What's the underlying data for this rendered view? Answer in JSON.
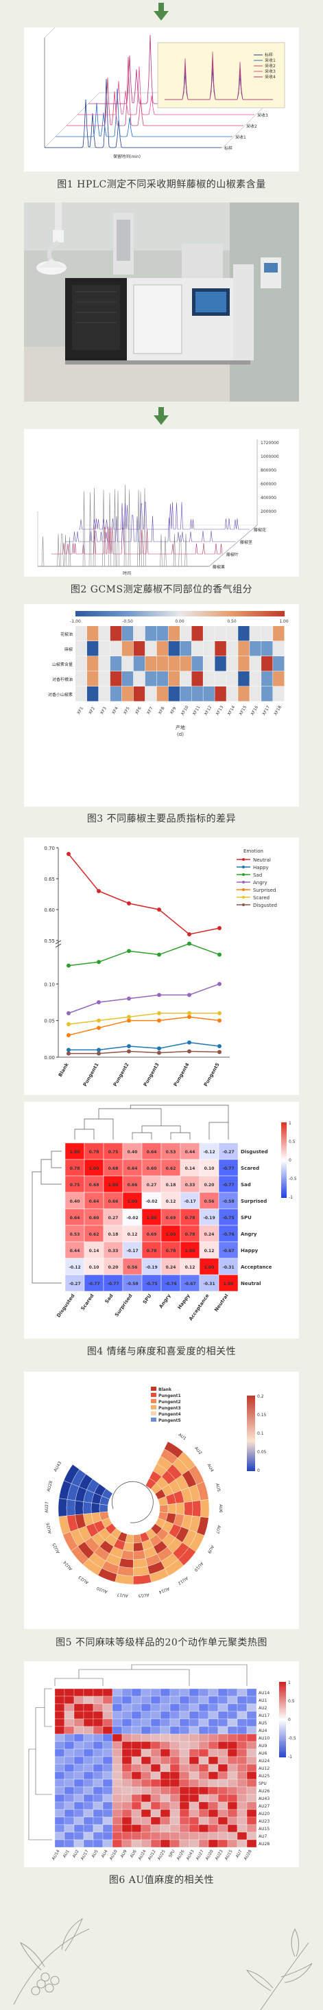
{
  "captions": {
    "fig1": "图1 HPLC测定不同采收期鲜藤椒的山椒素含量",
    "fig2": "图2 GCMS测定藤椒不同部位的香气组分",
    "fig3": "图3 不同藤椒主要品质指标的差异",
    "fig4": "图4 情绪与麻度和喜爱度的相关性",
    "fig5": "图5 不同麻味等级样品的20个动作单元聚类热图",
    "fig6": "图6 AU值麻度的相关性"
  },
  "icons": {
    "arrow": "down-arrow-icon",
    "hood": "fume-hood",
    "instrument": "gcms-instrument"
  },
  "fig1": {
    "xlabel": "保留时间(min)",
    "legend": [
      "标样",
      "采收1",
      "采收2",
      "采收3",
      "采收4"
    ],
    "series_labels": [
      "标样",
      "采收1",
      "采收2",
      "采收3",
      "采收4"
    ]
  },
  "fig2": {
    "xlabel": "时间",
    "ylabels": [
      "1720000",
      "1000000",
      "800000",
      "600000",
      "400000",
      "200000"
    ],
    "series_labels": [
      "藤椒果",
      "藤椒叶",
      "藤椒茎",
      "藤椒花"
    ]
  },
  "fig3": {
    "colorbar_ticks": [
      "-1.00",
      "-0.50",
      "0.00",
      "0.50",
      "1.00"
    ],
    "rows": [
      "花椒油",
      "麻椒",
      "山椒素含量",
      "对香柠檬油",
      "对香小山椒素"
    ],
    "cols": [
      "XF1",
      "XF2",
      "XF3",
      "XF4",
      "XF5",
      "XF6",
      "XF7",
      "XF8",
      "XF9",
      "XF10",
      "XF11",
      "XF12",
      "XF13",
      "XF14",
      "XF15",
      "XF16",
      "XF17",
      "XF18"
    ],
    "xlabel": "产地",
    "xlabel2": "(d)",
    "colors": [
      "#2c5aa0",
      "#6f98cb",
      "#e8e8e8",
      "#e69b6b",
      "#c0392b"
    ]
  },
  "chart_data": {
    "type": "line",
    "categories": [
      "Blank",
      "Pungent1",
      "Pungent2",
      "Pungent3",
      "Pungent4",
      "Pungent5"
    ],
    "series": [
      {
        "name": "Neutral",
        "color": "#d62728",
        "values": [
          0.69,
          0.63,
          0.61,
          0.6,
          0.56,
          0.57
        ]
      },
      {
        "name": "Happy",
        "color": "#1f77b4",
        "values": [
          0.01,
          0.01,
          0.015,
          0.012,
          0.02,
          0.015
        ]
      },
      {
        "name": "Sad",
        "color": "#2ca02c",
        "values": [
          0.125,
          0.13,
          0.145,
          0.14,
          0.155,
          0.14
        ]
      },
      {
        "name": "Angry",
        "color": "#9467bd",
        "values": [
          0.06,
          0.075,
          0.08,
          0.085,
          0.085,
          0.1
        ]
      },
      {
        "name": "Surprised",
        "color": "#ff7f0e",
        "values": [
          0.03,
          0.04,
          0.05,
          0.05,
          0.055,
          0.05
        ]
      },
      {
        "name": "Scared",
        "color": "#e6c229",
        "values": [
          0.045,
          0.05,
          0.055,
          0.06,
          0.06,
          0.06
        ]
      },
      {
        "name": "Disgusted",
        "color": "#8c564b",
        "values": [
          0.005,
          0.005,
          0.008,
          0.006,
          0.008,
          0.007
        ]
      }
    ],
    "legend_title": "Emotion",
    "yticks": [
      "0.70",
      "0.65",
      "0.60",
      "0.55"
    ],
    "yticks_low": [
      "0.10",
      "0.05",
      "0.00"
    ]
  },
  "fig4": {
    "rows": [
      "Disgusted",
      "Scared",
      "Sad",
      "Surprised",
      "SPU",
      "Angry",
      "Happy",
      "Acceptance",
      "Neutral"
    ],
    "matrix": [
      [
        "1.00",
        "0.78",
        "0.75",
        "0.40",
        "0.64",
        "0.53",
        "0.44",
        "-0.12",
        "-0.27"
      ],
      [
        "0.78",
        "1.00",
        "0.68",
        "0.64",
        "0.60",
        "0.62",
        "0.14",
        "0.10",
        "-0.77"
      ],
      [
        "0.75",
        "0.68",
        "1.00",
        "0.66",
        "0.27",
        "0.18",
        "0.33",
        "0.20",
        "-0.77"
      ],
      [
        "0.40",
        "0.64",
        "0.66",
        "1.00",
        "-0.02",
        "0.12",
        "-0.17",
        "0.56",
        "-0.58"
      ],
      [
        "0.64",
        "0.60",
        "0.27",
        "-0.02",
        "1.00",
        "0.69",
        "0.78",
        "-0.19",
        "-0.75"
      ],
      [
        "0.53",
        "0.62",
        "0.18",
        "0.12",
        "0.69",
        "1.00",
        "0.78",
        "0.24",
        "-0.76"
      ],
      [
        "0.44",
        "0.14",
        "0.33",
        "-0.17",
        "0.78",
        "0.78",
        "1.00",
        "0.12",
        "-0.67"
      ],
      [
        "-0.12",
        "0.10",
        "0.20",
        "0.56",
        "-0.19",
        "0.24",
        "0.12",
        "1.00",
        "-0.31"
      ],
      [
        "-0.27",
        "-0.77",
        "-0.77",
        "-0.58",
        "-0.75",
        "-0.76",
        "-0.67",
        "-0.31",
        "1.00"
      ]
    ],
    "colorbar": [
      "1",
      "0.5",
      "0",
      "-0.5",
      "-1"
    ]
  },
  "fig5": {
    "legend": [
      "Blank",
      "Pungent1",
      "Pungent2",
      "Pungent3",
      "Pungent4",
      "Pungent5"
    ],
    "labels": [
      "AU1",
      "AU2",
      "AU4",
      "AU5",
      "AU6",
      "AU7",
      "AU9",
      "AU10",
      "AU12",
      "AU14",
      "AU15",
      "AU17",
      "AU20",
      "AU23",
      "AU24",
      "AU25",
      "AU26",
      "AU27",
      "AU28",
      "AU43"
    ],
    "colorbar": [
      "0.2",
      "0.15",
      "0.1",
      "0.05",
      "0"
    ]
  },
  "fig6": {
    "labels": [
      "AU14",
      "AU1",
      "AU2",
      "AU17",
      "AU5",
      "AU4",
      "AU10",
      "AU9",
      "AU6",
      "AU24",
      "AU12",
      "AU25",
      "SPU",
      "AU26",
      "AU43",
      "AU27",
      "AU20",
      "AU23",
      "AU15",
      "AU7",
      "AU28"
    ],
    "colorbar": [
      "1",
      "0.5",
      "0",
      "-0.5",
      "-1"
    ]
  }
}
